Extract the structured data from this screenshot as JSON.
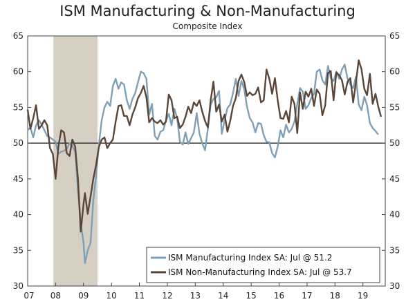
{
  "chart_data": {
    "type": "line",
    "title": "ISM Manufacturing & Non-Manufacturing",
    "subtitle": "Composite Index",
    "xlabel": "",
    "ylabel": "",
    "ylim": [
      30,
      65
    ],
    "xlim": [
      2007.0,
      2019.8
    ],
    "y_ticks": [
      30,
      35,
      40,
      45,
      50,
      55,
      60,
      65
    ],
    "x_ticks": [
      {
        "label": "07",
        "value": 2007.0
      },
      {
        "label": "08",
        "value": 2008.0
      },
      {
        "label": "09",
        "value": 2009.0
      },
      {
        "label": "10",
        "value": 2010.0
      },
      {
        "label": "11",
        "value": 2011.0
      },
      {
        "label": "12",
        "value": 2012.0
      },
      {
        "label": "13",
        "value": 2013.0
      },
      {
        "label": "14",
        "value": 2014.0
      },
      {
        "label": "15",
        "value": 2015.0
      },
      {
        "label": "16",
        "value": 2016.0
      },
      {
        "label": "17",
        "value": 2017.0
      },
      {
        "label": "18",
        "value": 2018.0
      },
      {
        "label": "19",
        "value": 2019.0
      }
    ],
    "reference_line": 50,
    "recession_band": {
      "start": 2007.92,
      "end": 2009.5,
      "color": "#d6d0c4"
    },
    "legend_position": "bottom-right",
    "series": [
      {
        "name": "ISM Manufacturing Index SA: Jul @ 51.2",
        "color": "#7fa0b5",
        "points": [
          [
            2007.0,
            51.8
          ],
          [
            2007.1,
            52.2
          ],
          [
            2007.2,
            50.8
          ],
          [
            2007.3,
            52.5
          ],
          [
            2007.4,
            53.2
          ],
          [
            2007.5,
            52.6
          ],
          [
            2007.6,
            51.8
          ],
          [
            2007.7,
            51.0
          ],
          [
            2007.8,
            50.8
          ],
          [
            2007.9,
            50.5
          ],
          [
            2008.0,
            50.2
          ],
          [
            2008.1,
            48.5
          ],
          [
            2008.2,
            48.8
          ],
          [
            2008.3,
            48.9
          ],
          [
            2008.4,
            49.2
          ],
          [
            2008.5,
            50.0
          ],
          [
            2008.6,
            49.6
          ],
          [
            2008.7,
            48.8
          ],
          [
            2008.8,
            43.5
          ],
          [
            2008.9,
            38.9
          ],
          [
            2009.0,
            36.0
          ],
          [
            2009.05,
            33.2
          ],
          [
            2009.15,
            35.0
          ],
          [
            2009.25,
            36.0
          ],
          [
            2009.35,
            42.0
          ],
          [
            2009.45,
            45.5
          ],
          [
            2009.55,
            49.8
          ],
          [
            2009.65,
            53.2
          ],
          [
            2009.75,
            55.0
          ],
          [
            2009.85,
            55.8
          ],
          [
            2009.95,
            55.2
          ],
          [
            2010.05,
            58.0
          ],
          [
            2010.15,
            59.0
          ],
          [
            2010.25,
            57.6
          ],
          [
            2010.35,
            58.5
          ],
          [
            2010.45,
            58.2
          ],
          [
            2010.55,
            56.0
          ],
          [
            2010.65,
            54.8
          ],
          [
            2010.75,
            56.2
          ],
          [
            2010.85,
            57.0
          ],
          [
            2010.95,
            58.5
          ],
          [
            2011.05,
            60.0
          ],
          [
            2011.15,
            59.8
          ],
          [
            2011.25,
            59.0
          ],
          [
            2011.35,
            54.0
          ],
          [
            2011.45,
            55.5
          ],
          [
            2011.55,
            51.0
          ],
          [
            2011.65,
            50.5
          ],
          [
            2011.75,
            51.6
          ],
          [
            2011.85,
            51.8
          ],
          [
            2011.95,
            53.1
          ],
          [
            2012.05,
            54.1
          ],
          [
            2012.15,
            52.5
          ],
          [
            2012.25,
            54.8
          ],
          [
            2012.35,
            53.5
          ],
          [
            2012.45,
            50.2
          ],
          [
            2012.55,
            49.8
          ],
          [
            2012.65,
            51.5
          ],
          [
            2012.75,
            49.9
          ],
          [
            2012.85,
            50.7
          ],
          [
            2012.95,
            51.5
          ],
          [
            2013.05,
            54.2
          ],
          [
            2013.15,
            51.3
          ],
          [
            2013.25,
            50.0
          ],
          [
            2013.35,
            49.0
          ],
          [
            2013.45,
            52.0
          ],
          [
            2013.55,
            55.4
          ],
          [
            2013.65,
            56.2
          ],
          [
            2013.75,
            56.4
          ],
          [
            2013.85,
            57.3
          ],
          [
            2013.95,
            51.3
          ],
          [
            2014.05,
            53.2
          ],
          [
            2014.15,
            54.9
          ],
          [
            2014.25,
            55.4
          ],
          [
            2014.35,
            57.0
          ],
          [
            2014.45,
            59.0
          ],
          [
            2014.55,
            56.6
          ],
          [
            2014.65,
            58.7
          ],
          [
            2014.75,
            57.6
          ],
          [
            2014.85,
            55.1
          ],
          [
            2014.95,
            53.5
          ],
          [
            2015.05,
            52.9
          ],
          [
            2015.15,
            51.5
          ],
          [
            2015.25,
            52.8
          ],
          [
            2015.35,
            52.7
          ],
          [
            2015.45,
            51.1
          ],
          [
            2015.55,
            50.2
          ],
          [
            2015.65,
            50.1
          ],
          [
            2015.75,
            48.6
          ],
          [
            2015.85,
            48.0
          ],
          [
            2015.95,
            49.5
          ],
          [
            2016.05,
            51.8
          ],
          [
            2016.15,
            50.8
          ],
          [
            2016.25,
            52.6
          ],
          [
            2016.35,
            51.5
          ],
          [
            2016.45,
            52.0
          ],
          [
            2016.55,
            53.0
          ],
          [
            2016.65,
            55.5
          ],
          [
            2016.75,
            57.7
          ],
          [
            2016.85,
            57.2
          ],
          [
            2016.95,
            54.8
          ],
          [
            2017.05,
            55.3
          ],
          [
            2017.15,
            56.3
          ],
          [
            2017.25,
            56.9
          ],
          [
            2017.35,
            60.0
          ],
          [
            2017.45,
            60.3
          ],
          [
            2017.55,
            58.8
          ],
          [
            2017.65,
            58.2
          ],
          [
            2017.75,
            60.8
          ],
          [
            2017.85,
            59.1
          ],
          [
            2017.95,
            58.7
          ],
          [
            2018.05,
            60.0
          ],
          [
            2018.15,
            59.0
          ],
          [
            2018.25,
            60.3
          ],
          [
            2018.35,
            61.0
          ],
          [
            2018.45,
            59.0
          ],
          [
            2018.55,
            58.2
          ],
          [
            2018.65,
            57.7
          ],
          [
            2018.75,
            59.3
          ],
          [
            2018.85,
            55.4
          ],
          [
            2018.95,
            54.6
          ],
          [
            2019.05,
            56.5
          ],
          [
            2019.15,
            55.3
          ],
          [
            2019.25,
            52.8
          ],
          [
            2019.35,
            52.1
          ],
          [
            2019.45,
            51.7
          ],
          [
            2019.55,
            51.2
          ]
        ]
      },
      {
        "name": "ISM Non-Manufacturing Index SA: Jul @ 53.7",
        "color": "#5a4638",
        "points": [
          [
            2007.0,
            54.7
          ],
          [
            2007.1,
            52.0
          ],
          [
            2007.2,
            53.5
          ],
          [
            2007.3,
            55.3
          ],
          [
            2007.4,
            52.0
          ],
          [
            2007.5,
            52.5
          ],
          [
            2007.6,
            53.2
          ],
          [
            2007.7,
            52.5
          ],
          [
            2007.8,
            49.3
          ],
          [
            2007.9,
            48.5
          ],
          [
            2008.0,
            45.0
          ],
          [
            2008.1,
            49.5
          ],
          [
            2008.2,
            51.8
          ],
          [
            2008.3,
            51.5
          ],
          [
            2008.4,
            48.6
          ],
          [
            2008.5,
            48.2
          ],
          [
            2008.6,
            50.5
          ],
          [
            2008.7,
            49.5
          ],
          [
            2008.8,
            45.0
          ],
          [
            2008.9,
            37.6
          ],
          [
            2009.0,
            41.5
          ],
          [
            2009.05,
            43.0
          ],
          [
            2009.15,
            40.1
          ],
          [
            2009.25,
            42.5
          ],
          [
            2009.35,
            45.0
          ],
          [
            2009.45,
            47.0
          ],
          [
            2009.55,
            49.5
          ],
          [
            2009.65,
            50.5
          ],
          [
            2009.75,
            50.8
          ],
          [
            2009.85,
            49.3
          ],
          [
            2009.95,
            50.0
          ],
          [
            2010.05,
            50.5
          ],
          [
            2010.15,
            53.0
          ],
          [
            2010.25,
            55.2
          ],
          [
            2010.35,
            55.3
          ],
          [
            2010.45,
            53.8
          ],
          [
            2010.55,
            53.8
          ],
          [
            2010.65,
            52.5
          ],
          [
            2010.75,
            54.0
          ],
          [
            2010.85,
            55.0
          ],
          [
            2010.95,
            56.3
          ],
          [
            2011.05,
            57.0
          ],
          [
            2011.15,
            58.0
          ],
          [
            2011.25,
            56.4
          ],
          [
            2011.35,
            52.9
          ],
          [
            2011.45,
            53.5
          ],
          [
            2011.55,
            53.0
          ],
          [
            2011.65,
            52.8
          ],
          [
            2011.75,
            53.2
          ],
          [
            2011.85,
            52.6
          ],
          [
            2011.95,
            53.0
          ],
          [
            2012.05,
            56.8
          ],
          [
            2012.15,
            56.0
          ],
          [
            2012.25,
            53.5
          ],
          [
            2012.35,
            53.7
          ],
          [
            2012.45,
            52.1
          ],
          [
            2012.55,
            52.6
          ],
          [
            2012.65,
            53.7
          ],
          [
            2012.75,
            55.1
          ],
          [
            2012.85,
            54.2
          ],
          [
            2012.95,
            55.7
          ],
          [
            2013.05,
            55.2
          ],
          [
            2013.15,
            56.0
          ],
          [
            2013.25,
            54.4
          ],
          [
            2013.35,
            53.1
          ],
          [
            2013.45,
            52.2
          ],
          [
            2013.55,
            56.0
          ],
          [
            2013.65,
            58.6
          ],
          [
            2013.75,
            54.4
          ],
          [
            2013.85,
            55.4
          ],
          [
            2013.95,
            53.0
          ],
          [
            2014.05,
            54.0
          ],
          [
            2014.15,
            51.6
          ],
          [
            2014.25,
            53.1
          ],
          [
            2014.35,
            55.2
          ],
          [
            2014.45,
            56.3
          ],
          [
            2014.55,
            58.7
          ],
          [
            2014.65,
            59.6
          ],
          [
            2014.75,
            58.6
          ],
          [
            2014.85,
            56.6
          ],
          [
            2014.95,
            57.1
          ],
          [
            2015.05,
            56.7
          ],
          [
            2015.15,
            56.9
          ],
          [
            2015.25,
            57.8
          ],
          [
            2015.35,
            55.7
          ],
          [
            2015.45,
            56.0
          ],
          [
            2015.55,
            60.3
          ],
          [
            2015.65,
            59.0
          ],
          [
            2015.75,
            56.9
          ],
          [
            2015.85,
            59.1
          ],
          [
            2015.95,
            56.0
          ],
          [
            2016.05,
            53.5
          ],
          [
            2016.15,
            53.4
          ],
          [
            2016.25,
            54.5
          ],
          [
            2016.35,
            52.9
          ],
          [
            2016.45,
            56.5
          ],
          [
            2016.55,
            55.5
          ],
          [
            2016.65,
            51.4
          ],
          [
            2016.75,
            57.1
          ],
          [
            2016.85,
            54.8
          ],
          [
            2016.95,
            57.2
          ],
          [
            2017.05,
            56.5
          ],
          [
            2017.15,
            57.6
          ],
          [
            2017.25,
            55.2
          ],
          [
            2017.35,
            57.5
          ],
          [
            2017.45,
            56.9
          ],
          [
            2017.55,
            53.9
          ],
          [
            2017.65,
            55.3
          ],
          [
            2017.75,
            59.8
          ],
          [
            2017.85,
            60.1
          ],
          [
            2017.95,
            56.0
          ],
          [
            2018.05,
            59.9
          ],
          [
            2018.15,
            59.5
          ],
          [
            2018.25,
            58.8
          ],
          [
            2018.35,
            56.8
          ],
          [
            2018.45,
            58.6
          ],
          [
            2018.55,
            59.1
          ],
          [
            2018.65,
            55.7
          ],
          [
            2018.75,
            58.5
          ],
          [
            2018.85,
            61.6
          ],
          [
            2018.95,
            60.3
          ],
          [
            2019.05,
            57.6
          ],
          [
            2019.15,
            56.7
          ],
          [
            2019.25,
            59.7
          ],
          [
            2019.35,
            55.5
          ],
          [
            2019.45,
            56.9
          ],
          [
            2019.55,
            55.1
          ],
          [
            2019.65,
            53.7
          ]
        ]
      }
    ]
  }
}
